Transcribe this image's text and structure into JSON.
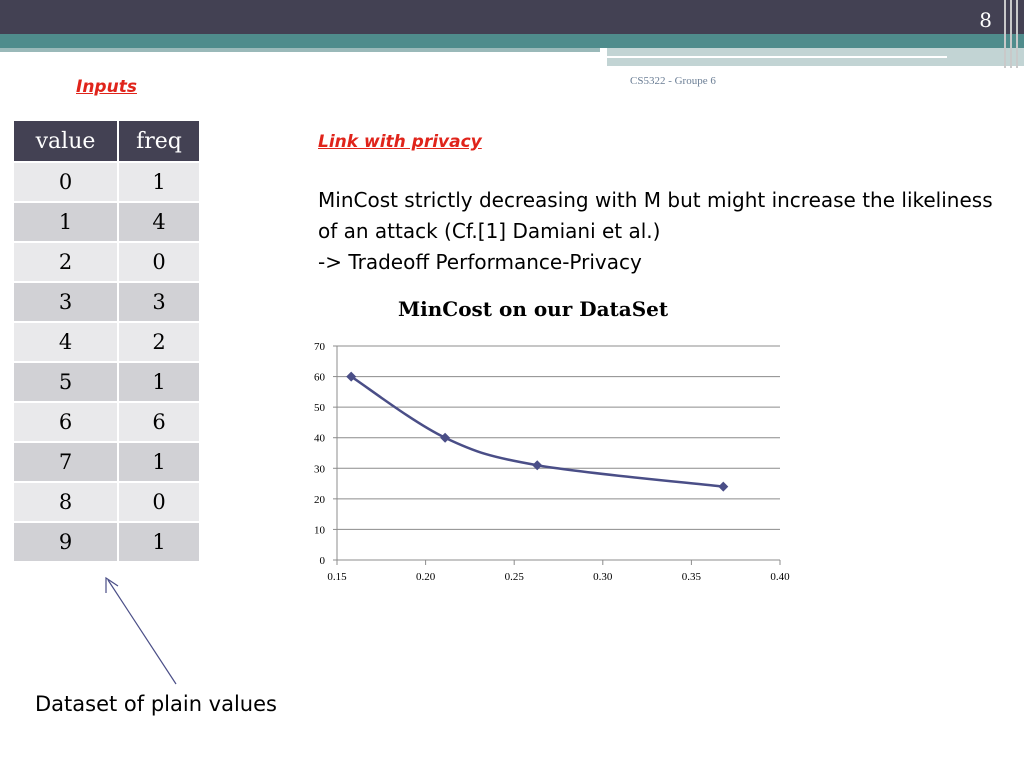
{
  "slide": {
    "number": "8",
    "footer": "CS5322 - Groupe 6"
  },
  "inputs_label": "Inputs",
  "table": {
    "headers": [
      "value",
      "freq"
    ],
    "rows": [
      [
        "0",
        "1"
      ],
      [
        "1",
        "4"
      ],
      [
        "2",
        "0"
      ],
      [
        "3",
        "3"
      ],
      [
        "4",
        "2"
      ],
      [
        "5",
        "1"
      ],
      [
        "6",
        "6"
      ],
      [
        "7",
        "1"
      ],
      [
        "8",
        "0"
      ],
      [
        "9",
        "1"
      ]
    ]
  },
  "privacy": {
    "title": "Link with privacy",
    "line1": "MinCost strictly decreasing with M but might increase the likeliness of an attack (Cf.[1] Damiani et al.)",
    "line2": "-> Tradeoff Performance-Privacy"
  },
  "caption": "Dataset of plain values",
  "colors": {
    "header": "#434153",
    "accent": "#e0241b",
    "line": "#4a4e87",
    "teal": "#4f8c8c"
  },
  "chart_data": {
    "type": "line",
    "title": "MinCost on our DataSet",
    "xlabel": "",
    "ylabel": "",
    "x": [
      0.158,
      0.211,
      0.263,
      0.368
    ],
    "series": [
      {
        "values": [
          60,
          40,
          31,
          24
        ]
      }
    ],
    "xlim": [
      0.15,
      0.4
    ],
    "ylim": [
      0,
      70
    ],
    "xticks": [
      "0.15",
      "0.20",
      "0.25",
      "0.30",
      "0.35",
      "0.40"
    ],
    "yticks": [
      "0",
      "10",
      "20",
      "30",
      "40",
      "50",
      "60",
      "70"
    ],
    "grid": true,
    "smooth": true,
    "marker": "diamond"
  }
}
